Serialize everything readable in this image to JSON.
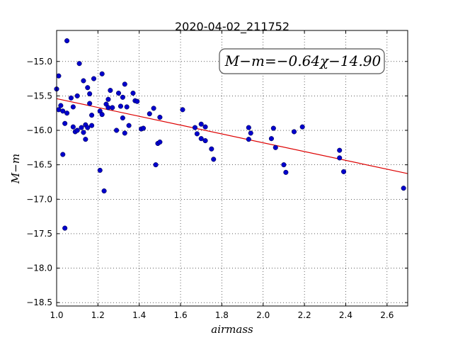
{
  "chart_data": {
    "type": "scatter",
    "title": "2020-04-02_211752",
    "xlabel": "airmass",
    "ylabel": "M−m",
    "xlim": [
      1.0,
      2.7
    ],
    "ylim": [
      -18.55,
      -14.55
    ],
    "x_ticks": [
      1.0,
      1.2,
      1.4,
      1.6,
      1.8,
      2.0,
      2.2,
      2.4,
      2.6
    ],
    "x_tick_labels": [
      "1.0",
      "1.2",
      "1.4",
      "1.6",
      "1.8",
      "2.0",
      "2.2",
      "2.4",
      "2.6"
    ],
    "y_ticks": [
      -15.0,
      -15.5,
      -16.0,
      -16.5,
      -17.0,
      -17.5,
      -18.0,
      -18.5
    ],
    "y_tick_labels": [
      "−15.0",
      "−15.5",
      "−16.0",
      "−16.5",
      "−17.0",
      "−17.5",
      "−18.0",
      "−18.5"
    ],
    "grid": true,
    "annotation": "M−m=−0.64χ−14.90",
    "point_color": "#0000cc",
    "fit_color": "#dd0000",
    "fit_line": {
      "slope": -0.64,
      "intercept": -14.9
    },
    "points": [
      [
        1.0,
        -15.4
      ],
      [
        1.01,
        -15.21
      ],
      [
        1.01,
        -15.7
      ],
      [
        1.02,
        -15.64
      ],
      [
        1.03,
        -15.72
      ],
      [
        1.03,
        -16.35
      ],
      [
        1.04,
        -15.9
      ],
      [
        1.04,
        -17.42
      ],
      [
        1.05,
        -14.7
      ],
      [
        1.05,
        -15.75
      ],
      [
        1.07,
        -15.53
      ],
      [
        1.08,
        -15.66
      ],
      [
        1.08,
        -15.95
      ],
      [
        1.09,
        -16.02
      ],
      [
        1.1,
        -15.5
      ],
      [
        1.1,
        -16.0
      ],
      [
        1.11,
        -15.03
      ],
      [
        1.12,
        -15.96
      ],
      [
        1.13,
        -15.28
      ],
      [
        1.13,
        -16.03
      ],
      [
        1.14,
        -16.13
      ],
      [
        1.14,
        -15.92
      ],
      [
        1.15,
        -15.38
      ],
      [
        1.15,
        -15.96
      ],
      [
        1.16,
        -15.61
      ],
      [
        1.16,
        -15.47
      ],
      [
        1.17,
        -15.93
      ],
      [
        1.17,
        -15.78
      ],
      [
        1.18,
        -15.25
      ],
      [
        1.21,
        -15.72
      ],
      [
        1.21,
        -16.58
      ],
      [
        1.22,
        -15.18
      ],
      [
        1.22,
        -15.77
      ],
      [
        1.23,
        -16.88
      ],
      [
        1.24,
        -15.62
      ],
      [
        1.25,
        -15.55
      ],
      [
        1.25,
        -15.67
      ],
      [
        1.26,
        -15.42
      ],
      [
        1.27,
        -15.67
      ],
      [
        1.29,
        -16.0
      ],
      [
        1.3,
        -15.46
      ],
      [
        1.31,
        -15.65
      ],
      [
        1.32,
        -15.52
      ],
      [
        1.32,
        -15.82
      ],
      [
        1.33,
        -16.04
      ],
      [
        1.33,
        -15.33
      ],
      [
        1.34,
        -15.66
      ],
      [
        1.35,
        -15.93
      ],
      [
        1.37,
        -15.46
      ],
      [
        1.38,
        -15.57
      ],
      [
        1.39,
        -15.58
      ],
      [
        1.41,
        -15.98
      ],
      [
        1.42,
        -15.97
      ],
      [
        1.45,
        -15.76
      ],
      [
        1.47,
        -15.68
      ],
      [
        1.48,
        -16.5
      ],
      [
        1.49,
        -16.19
      ],
      [
        1.5,
        -16.17
      ],
      [
        1.5,
        -15.81
      ],
      [
        1.61,
        -15.7
      ],
      [
        1.67,
        -15.96
      ],
      [
        1.68,
        -16.05
      ],
      [
        1.7,
        -15.91
      ],
      [
        1.7,
        -16.12
      ],
      [
        1.72,
        -15.95
      ],
      [
        1.72,
        -16.15
      ],
      [
        1.75,
        -16.27
      ],
      [
        1.76,
        -16.42
      ],
      [
        1.93,
        -15.96
      ],
      [
        1.93,
        -16.13
      ],
      [
        1.94,
        -16.04
      ],
      [
        2.04,
        -16.12
      ],
      [
        2.05,
        -15.97
      ],
      [
        2.06,
        -16.25
      ],
      [
        2.1,
        -16.5
      ],
      [
        2.11,
        -16.61
      ],
      [
        2.15,
        -16.02
      ],
      [
        2.19,
        -15.95
      ],
      [
        2.37,
        -16.29
      ],
      [
        2.37,
        -16.4
      ],
      [
        2.39,
        -16.6
      ],
      [
        2.68,
        -16.84
      ]
    ]
  }
}
